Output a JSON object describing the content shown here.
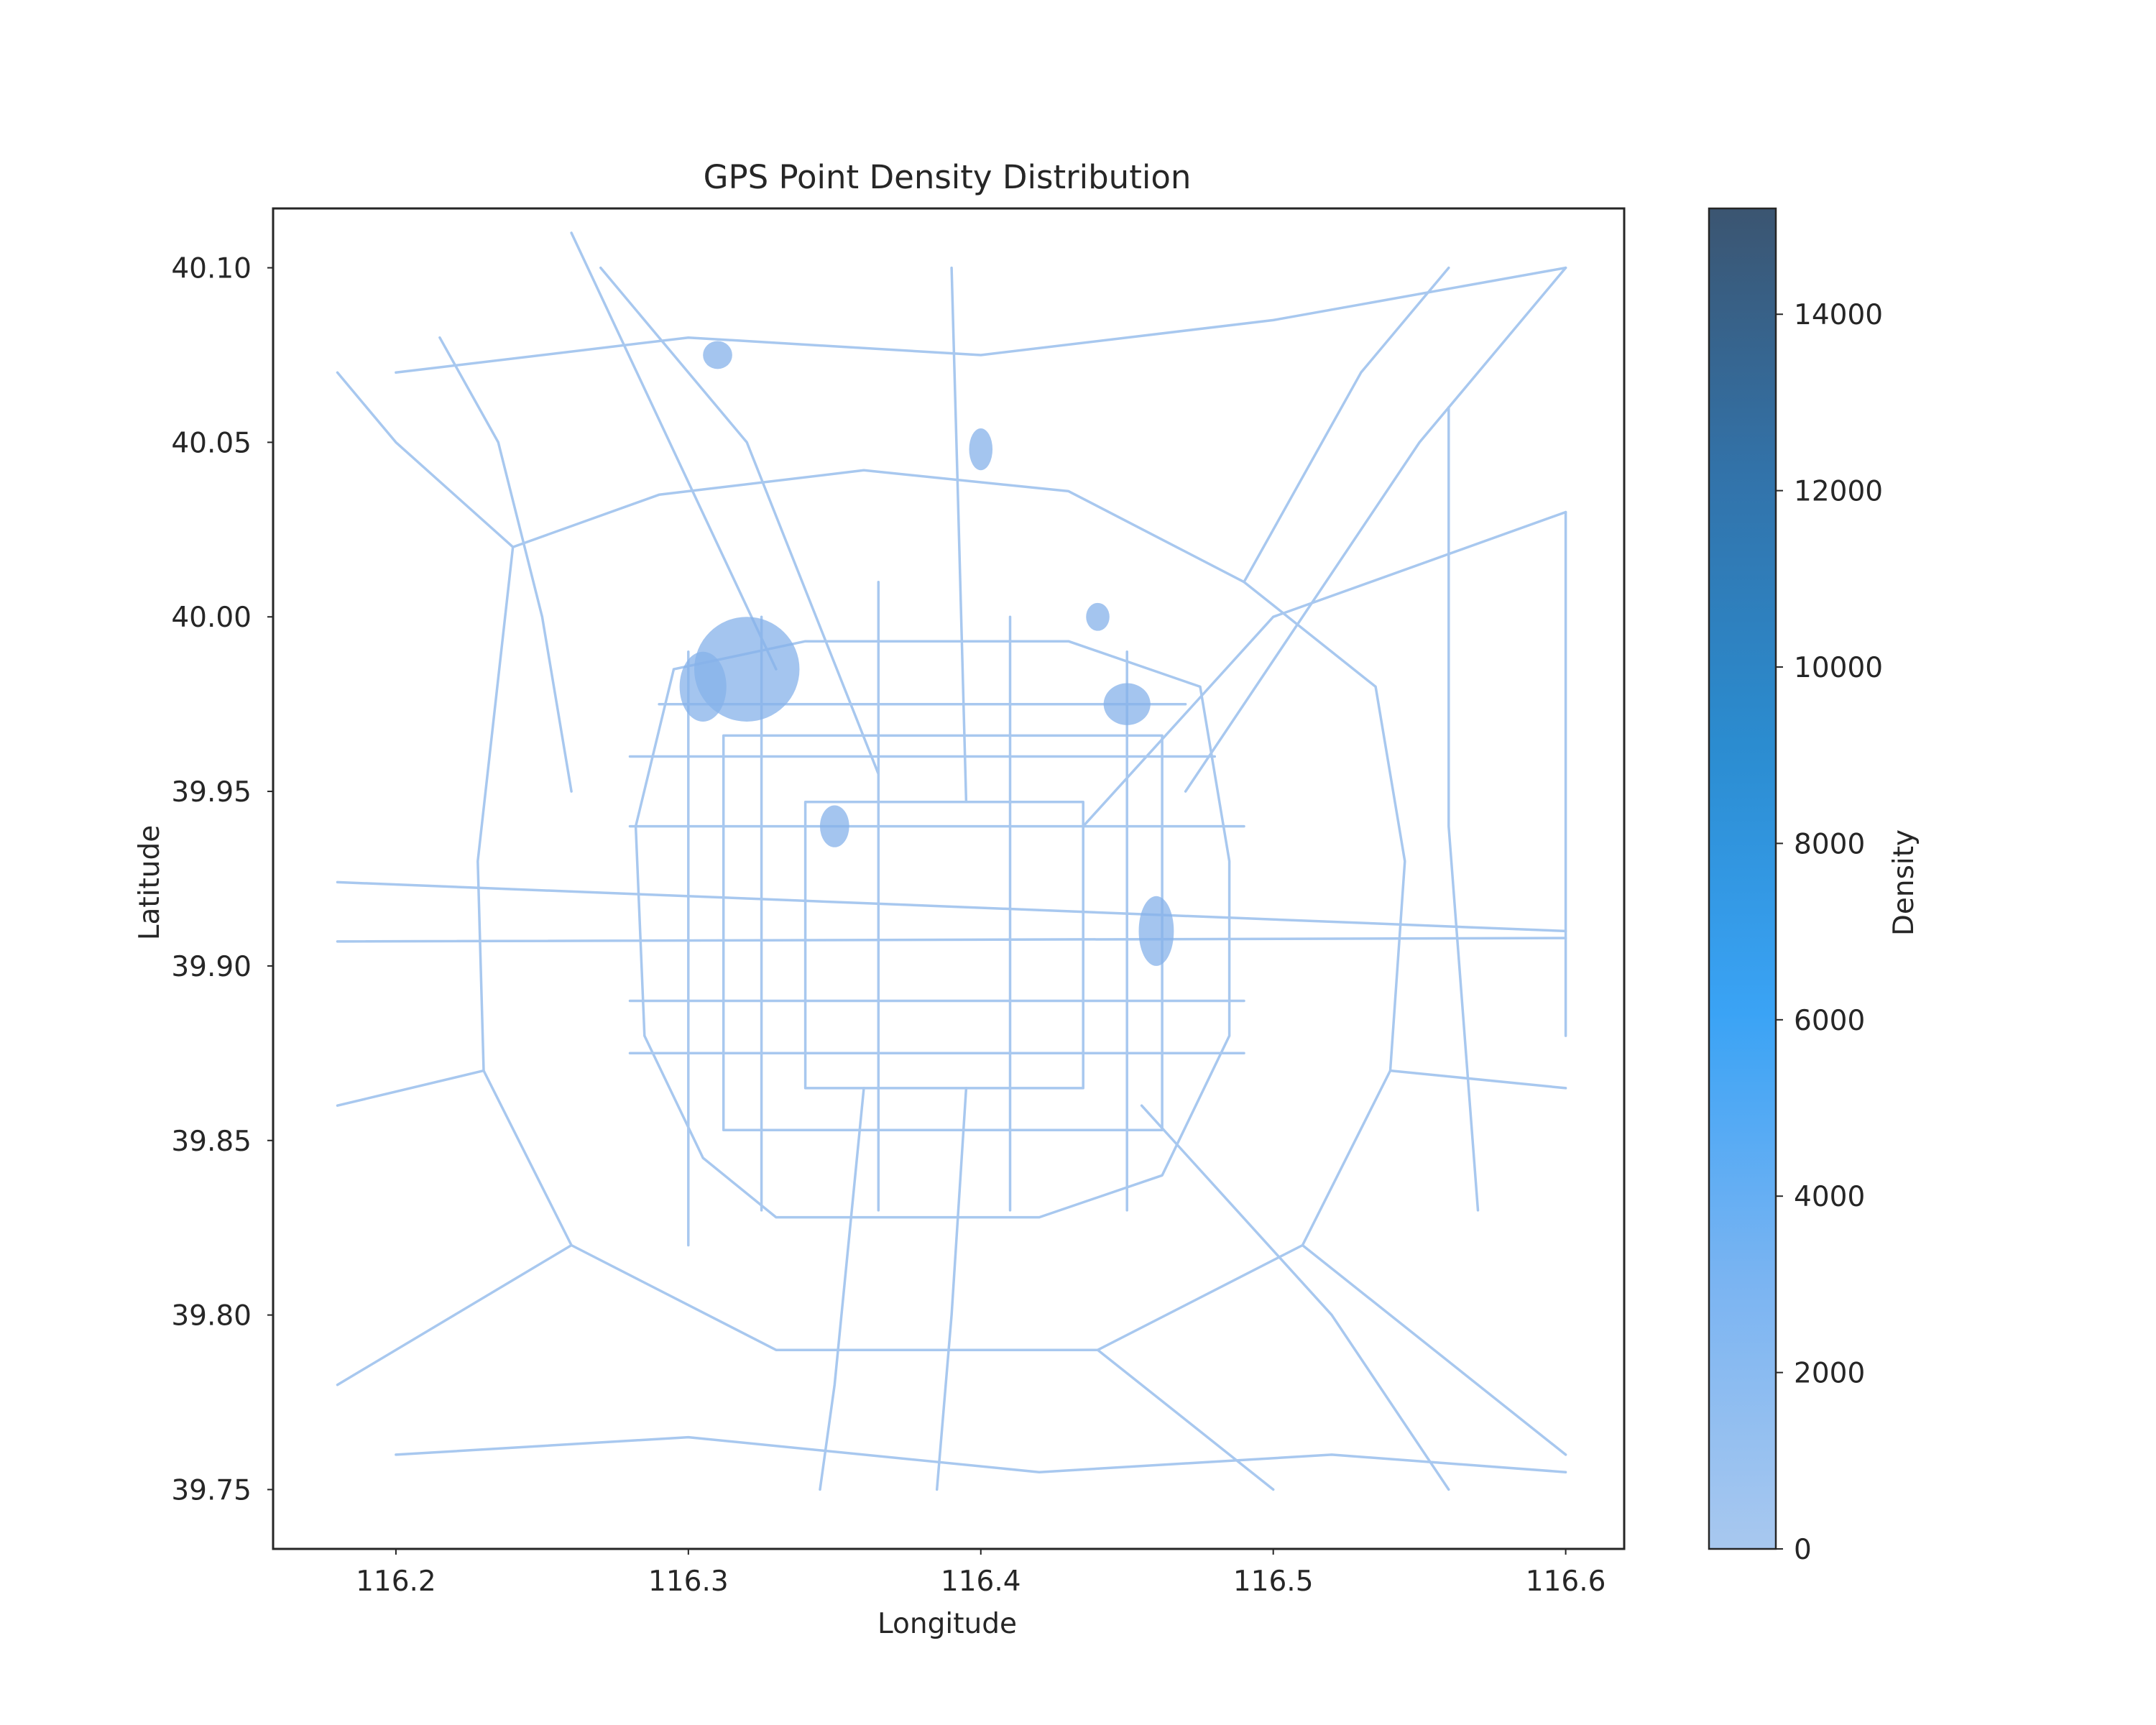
{
  "chart_data": {
    "type": "heatmap",
    "title": "GPS Point Density Distribution",
    "xlabel": "Longitude",
    "ylabel": "Latitude",
    "xlim": [
      116.158,
      116.62
    ],
    "ylim": [
      39.733,
      40.117
    ],
    "xticks": [
      {
        "value": 116.2,
        "label": "116.2"
      },
      {
        "value": 116.3,
        "label": "116.3"
      },
      {
        "value": 116.4,
        "label": "116.4"
      },
      {
        "value": 116.5,
        "label": "116.5"
      },
      {
        "value": 116.6,
        "label": "116.6"
      }
    ],
    "yticks": [
      {
        "value": 39.75,
        "label": "39.75"
      },
      {
        "value": 39.8,
        "label": "39.80"
      },
      {
        "value": 39.85,
        "label": "39.85"
      },
      {
        "value": 39.9,
        "label": "39.90"
      },
      {
        "value": 39.95,
        "label": "39.95"
      },
      {
        "value": 40.0,
        "label": "40.00"
      },
      {
        "value": 40.05,
        "label": "40.05"
      },
      {
        "value": 40.1,
        "label": "40.10"
      }
    ],
    "grid": false,
    "colorbar": {
      "label": "Density",
      "range": [
        0,
        15200
      ],
      "ticks": [
        {
          "value": 0,
          "label": "0"
        },
        {
          "value": 2000,
          "label": "2000"
        },
        {
          "value": 4000,
          "label": "4000"
        },
        {
          "value": 6000,
          "label": "6000"
        },
        {
          "value": 8000,
          "label": "8000"
        },
        {
          "value": 10000,
          "label": "10000"
        },
        {
          "value": 12000,
          "label": "12000"
        },
        {
          "value": 14000,
          "label": "14000"
        }
      ],
      "colors": [
        "#a8c8ef",
        "#7ab4f2",
        "#3aa3f5",
        "#2b8cd0",
        "#3273aa",
        "#3b5571"
      ]
    },
    "road_color": "#a8c8ef",
    "hotspot_color": "#86b2ea",
    "roads": [
      {
        "name": "ring-2",
        "points": [
          [
            116.34,
            39.947
          ],
          [
            116.435,
            39.947
          ],
          [
            116.435,
            39.865
          ],
          [
            116.34,
            39.865
          ],
          [
            116.34,
            39.947
          ]
        ]
      },
      {
        "name": "ring-3",
        "points": [
          [
            116.312,
            39.966
          ],
          [
            116.462,
            39.966
          ],
          [
            116.462,
            39.853
          ],
          [
            116.312,
            39.853
          ],
          [
            116.312,
            39.966
          ]
        ]
      },
      {
        "name": "ring-4",
        "points": [
          [
            116.295,
            39.985
          ],
          [
            116.34,
            39.993
          ],
          [
            116.43,
            39.993
          ],
          [
            116.475,
            39.98
          ],
          [
            116.485,
            39.93
          ],
          [
            116.485,
            39.88
          ],
          [
            116.462,
            39.84
          ],
          [
            116.42,
            39.828
          ],
          [
            116.33,
            39.828
          ],
          [
            116.305,
            39.845
          ],
          [
            116.285,
            39.88
          ],
          [
            116.282,
            39.94
          ],
          [
            116.295,
            39.985
          ]
        ]
      },
      {
        "name": "ring-5",
        "points": [
          [
            116.24,
            40.02
          ],
          [
            116.29,
            40.035
          ],
          [
            116.36,
            40.042
          ],
          [
            116.43,
            40.036
          ],
          [
            116.49,
            40.01
          ],
          [
            116.535,
            39.98
          ],
          [
            116.545,
            39.93
          ],
          [
            116.54,
            39.87
          ],
          [
            116.51,
            39.82
          ],
          [
            116.44,
            39.79
          ],
          [
            116.33,
            39.79
          ],
          [
            116.26,
            39.82
          ],
          [
            116.23,
            39.87
          ],
          [
            116.228,
            39.93
          ],
          [
            116.24,
            40.02
          ]
        ]
      },
      {
        "name": "chang-an-ave",
        "points": [
          [
            116.18,
            39.907
          ],
          [
            116.6,
            39.908
          ]
        ]
      },
      {
        "name": "ping-an-ave",
        "points": [
          [
            116.18,
            39.924
          ],
          [
            116.6,
            39.91
          ]
        ]
      },
      {
        "name": "airport-expwy",
        "points": [
          [
            116.435,
            39.94
          ],
          [
            116.5,
            40.0
          ],
          [
            116.6,
            40.03
          ]
        ]
      },
      {
        "name": "jingcheng-expwy",
        "points": [
          [
            116.47,
            39.95
          ],
          [
            116.55,
            40.05
          ],
          [
            116.6,
            40.1
          ]
        ]
      },
      {
        "name": "badaling-expwy",
        "points": [
          [
            116.365,
            39.955
          ],
          [
            116.32,
            40.05
          ],
          [
            116.27,
            40.1
          ]
        ]
      },
      {
        "name": "jingzang-northwest",
        "points": [
          [
            116.33,
            39.985
          ],
          [
            116.26,
            40.11
          ]
        ]
      },
      {
        "name": "jingkai-expwy",
        "points": [
          [
            116.36,
            39.865
          ],
          [
            116.35,
            39.78
          ],
          [
            116.345,
            39.75
          ]
        ]
      },
      {
        "name": "jingjintang",
        "points": [
          [
            116.455,
            39.86
          ],
          [
            116.52,
            39.8
          ],
          [
            116.56,
            39.75
          ]
        ]
      },
      {
        "name": "south-central-axis",
        "points": [
          [
            116.395,
            39.865
          ],
          [
            116.39,
            39.8
          ],
          [
            116.385,
            39.75
          ]
        ]
      },
      {
        "name": "north-central-axis",
        "points": [
          [
            116.395,
            39.947
          ],
          [
            116.392,
            40.04
          ],
          [
            116.39,
            40.1
          ]
        ]
      },
      {
        "name": "northeast-diagonal",
        "points": [
          [
            116.49,
            40.01
          ],
          [
            116.53,
            40.07
          ],
          [
            116.56,
            40.1
          ]
        ]
      },
      {
        "name": "southwest-road",
        "points": [
          [
            116.26,
            39.82
          ],
          [
            116.22,
            39.8
          ],
          [
            116.18,
            39.78
          ]
        ]
      },
      {
        "name": "west-road",
        "points": [
          [
            116.23,
            39.87
          ],
          [
            116.18,
            39.86
          ]
        ]
      },
      {
        "name": "north-west-road",
        "points": [
          [
            116.24,
            40.02
          ],
          [
            116.2,
            40.05
          ],
          [
            116.18,
            40.07
          ]
        ]
      },
      {
        "name": "east-road-south",
        "points": [
          [
            116.54,
            39.87
          ],
          [
            116.6,
            39.865
          ]
        ]
      },
      {
        "name": "east-diagonal-south",
        "points": [
          [
            116.51,
            39.82
          ],
          [
            116.57,
            39.78
          ],
          [
            116.6,
            39.76
          ]
        ]
      },
      {
        "name": "southeast-road",
        "points": [
          [
            116.44,
            39.79
          ],
          [
            116.47,
            39.77
          ],
          [
            116.5,
            39.75
          ]
        ]
      },
      {
        "name": "west-grid-v1",
        "points": [
          [
            116.3,
            39.99
          ],
          [
            116.3,
            39.82
          ]
        ]
      },
      {
        "name": "west-grid-v2",
        "points": [
          [
            116.325,
            40.0
          ],
          [
            116.325,
            39.83
          ]
        ]
      },
      {
        "name": "mid-grid-v1",
        "points": [
          [
            116.365,
            40.01
          ],
          [
            116.365,
            39.83
          ]
        ]
      },
      {
        "name": "mid-grid-v2",
        "points": [
          [
            116.41,
            40.0
          ],
          [
            116.41,
            39.83
          ]
        ]
      },
      {
        "name": "east-grid-v1",
        "points": [
          [
            116.45,
            39.99
          ],
          [
            116.45,
            39.83
          ]
        ]
      },
      {
        "name": "grid-h1",
        "points": [
          [
            116.29,
            39.975
          ],
          [
            116.47,
            39.975
          ]
        ]
      },
      {
        "name": "grid-h2",
        "points": [
          [
            116.28,
            39.96
          ],
          [
            116.48,
            39.96
          ]
        ]
      },
      {
        "name": "grid-h3",
        "points": [
          [
            116.28,
            39.94
          ],
          [
            116.49,
            39.94
          ]
        ]
      },
      {
        "name": "grid-h4",
        "points": [
          [
            116.28,
            39.89
          ],
          [
            116.49,
            39.89
          ]
        ]
      },
      {
        "name": "grid-h5",
        "points": [
          [
            116.28,
            39.875
          ],
          [
            116.49,
            39.875
          ]
        ]
      },
      {
        "name": "far-east-v",
        "points": [
          [
            116.6,
            40.03
          ],
          [
            116.6,
            39.88
          ]
        ]
      },
      {
        "name": "far-north-h",
        "points": [
          [
            116.2,
            40.07
          ],
          [
            116.3,
            40.08
          ],
          [
            116.4,
            40.075
          ],
          [
            116.5,
            40.085
          ],
          [
            116.6,
            40.1
          ]
        ]
      },
      {
        "name": "far-south-h",
        "points": [
          [
            116.2,
            39.76
          ],
          [
            116.3,
            39.765
          ],
          [
            116.42,
            39.755
          ],
          [
            116.52,
            39.76
          ],
          [
            116.6,
            39.755
          ]
        ]
      },
      {
        "name": "northwest-curve",
        "points": [
          [
            116.215,
            40.08
          ],
          [
            116.235,
            40.05
          ],
          [
            116.25,
            40.0
          ],
          [
            116.26,
            39.95
          ]
        ]
      },
      {
        "name": "east-fifth-v",
        "points": [
          [
            116.56,
            40.06
          ],
          [
            116.56,
            39.94
          ],
          [
            116.57,
            39.83
          ]
        ]
      }
    ],
    "hotspots": [
      {
        "lon": 116.32,
        "lat": 39.985,
        "rlon": 0.018,
        "rlat": 0.015
      },
      {
        "lon": 116.305,
        "lat": 39.98,
        "rlon": 0.008,
        "rlat": 0.01
      },
      {
        "lon": 116.45,
        "lat": 39.975,
        "rlon": 0.008,
        "rlat": 0.006
      },
      {
        "lon": 116.46,
        "lat": 39.91,
        "rlon": 0.006,
        "rlat": 0.01
      },
      {
        "lon": 116.35,
        "lat": 39.94,
        "rlon": 0.005,
        "rlat": 0.006
      },
      {
        "lon": 116.44,
        "lat": 40.0,
        "rlon": 0.004,
        "rlat": 0.004
      },
      {
        "lon": 116.4,
        "lat": 40.048,
        "rlon": 0.004,
        "rlat": 0.006
      },
      {
        "lon": 116.31,
        "lat": 40.075,
        "rlon": 0.005,
        "rlat": 0.004
      }
    ]
  }
}
